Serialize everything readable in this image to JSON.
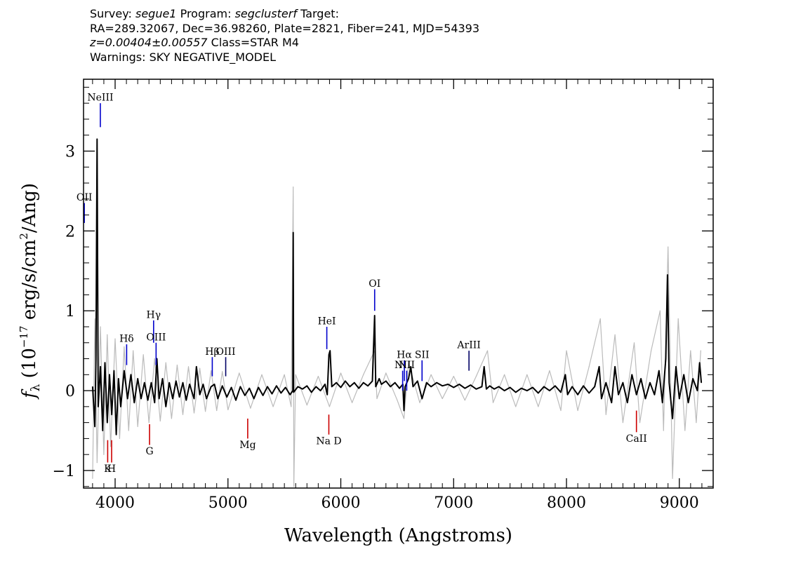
{
  "header": {
    "survey_label": "Survey:",
    "survey": "segue1",
    "program_label": "Program:",
    "program": "segclusterf",
    "target_label": "Target:",
    "line2": "RA=289.32067, Dec=36.98260, Plate=2821, Fiber=241, MJD=54393",
    "z_text": "z=0.00404±0.00557",
    "class_text": "Class=STAR M4",
    "warnings": "Warnings: SKY NEGATIVE_MODEL"
  },
  "chart_data": {
    "type": "line",
    "title": "",
    "xlabel": "Wavelength (Angstroms)",
    "ylabel_parts": {
      "f": "f",
      "sub": "λ",
      "rest1": " (10",
      "exp": "−17",
      "rest2": " erg/s/cm",
      "exp2": "2",
      "rest3": "/Ang)"
    },
    "xlim": [
      3720,
      9300
    ],
    "ylim": [
      -1.22,
      3.9
    ],
    "x_ticks": [
      4000,
      5000,
      6000,
      7000,
      8000,
      9000
    ],
    "x_tick_labels": [
      "4000",
      "5000",
      "6000",
      "7000",
      "8000",
      "9000"
    ],
    "y_ticks": [
      -1,
      0,
      1,
      2,
      3
    ],
    "y_tick_labels": [
      "−1",
      "0",
      "1",
      "2",
      "3"
    ],
    "series": [
      {
        "role": "flux",
        "color": "#000000",
        "points": [
          [
            3800,
            0.05
          ],
          [
            3820,
            -0.45
          ],
          [
            3830,
            0.4
          ],
          [
            3840,
            3.15
          ],
          [
            3850,
            -0.2
          ],
          [
            3870,
            0.3
          ],
          [
            3890,
            -0.5
          ],
          [
            3910,
            0.35
          ],
          [
            3930,
            -0.4
          ],
          [
            3950,
            0.2
          ],
          [
            3970,
            -0.3
          ],
          [
            3990,
            0.25
          ],
          [
            4010,
            -0.55
          ],
          [
            4030,
            0.15
          ],
          [
            4050,
            -0.2
          ],
          [
            4080,
            0.25
          ],
          [
            4110,
            -0.1
          ],
          [
            4140,
            0.2
          ],
          [
            4170,
            -0.15
          ],
          [
            4200,
            0.15
          ],
          [
            4230,
            -0.1
          ],
          [
            4260,
            0.1
          ],
          [
            4290,
            -0.12
          ],
          [
            4320,
            0.1
          ],
          [
            4350,
            -0.15
          ],
          [
            4370,
            0.4
          ],
          [
            4390,
            -0.1
          ],
          [
            4420,
            0.15
          ],
          [
            4450,
            -0.2
          ],
          [
            4480,
            0.1
          ],
          [
            4510,
            -0.1
          ],
          [
            4540,
            0.12
          ],
          [
            4570,
            -0.08
          ],
          [
            4600,
            0.1
          ],
          [
            4630,
            -0.12
          ],
          [
            4660,
            0.08
          ],
          [
            4700,
            -0.1
          ],
          [
            4720,
            0.3
          ],
          [
            4750,
            -0.05
          ],
          [
            4780,
            0.08
          ],
          [
            4810,
            -0.1
          ],
          [
            4850,
            0.05
          ],
          [
            4880,
            0.08
          ],
          [
            4910,
            -0.1
          ],
          [
            4950,
            0.06
          ],
          [
            4990,
            -0.08
          ],
          [
            5030,
            0.04
          ],
          [
            5070,
            -0.12
          ],
          [
            5110,
            0.05
          ],
          [
            5150,
            -0.06
          ],
          [
            5190,
            0.03
          ],
          [
            5230,
            -0.1
          ],
          [
            5270,
            0.04
          ],
          [
            5310,
            -0.06
          ],
          [
            5350,
            0.05
          ],
          [
            5390,
            -0.04
          ],
          [
            5430,
            0.06
          ],
          [
            5470,
            -0.03
          ],
          [
            5510,
            0.04
          ],
          [
            5550,
            -0.05
          ],
          [
            5575,
            0.0
          ],
          [
            5578,
            1.98
          ],
          [
            5582,
            -0.02
          ],
          [
            5620,
            0.05
          ],
          [
            5660,
            0.02
          ],
          [
            5700,
            0.06
          ],
          [
            5740,
            -0.02
          ],
          [
            5780,
            0.05
          ],
          [
            5820,
            0.0
          ],
          [
            5860,
            0.08
          ],
          [
            5880,
            -0.05
          ],
          [
            5895,
            0.45
          ],
          [
            5905,
            0.5
          ],
          [
            5920,
            0.05
          ],
          [
            5960,
            0.1
          ],
          [
            6000,
            0.04
          ],
          [
            6040,
            0.12
          ],
          [
            6080,
            0.05
          ],
          [
            6120,
            0.1
          ],
          [
            6160,
            0.03
          ],
          [
            6200,
            0.1
          ],
          [
            6240,
            0.06
          ],
          [
            6280,
            0.12
          ],
          [
            6300,
            0.94
          ],
          [
            6310,
            0.05
          ],
          [
            6340,
            0.15
          ],
          [
            6360,
            0.08
          ],
          [
            6400,
            0.12
          ],
          [
            6440,
            0.05
          ],
          [
            6480,
            0.1
          ],
          [
            6520,
            0.03
          ],
          [
            6550,
            0.08
          ],
          [
            6560,
            -0.25
          ],
          [
            6570,
            0.05
          ],
          [
            6600,
            0.15
          ],
          [
            6620,
            0.3
          ],
          [
            6640,
            0.05
          ],
          [
            6680,
            0.12
          ],
          [
            6720,
            -0.1
          ],
          [
            6760,
            0.1
          ],
          [
            6800,
            0.05
          ],
          [
            6850,
            0.1
          ],
          [
            6900,
            0.06
          ],
          [
            6950,
            0.08
          ],
          [
            7000,
            0.04
          ],
          [
            7050,
            0.08
          ],
          [
            7100,
            0.03
          ],
          [
            7150,
            0.07
          ],
          [
            7200,
            0.02
          ],
          [
            7250,
            0.05
          ],
          [
            7270,
            0.3
          ],
          [
            7290,
            0.02
          ],
          [
            7320,
            0.06
          ],
          [
            7360,
            0.02
          ],
          [
            7400,
            0.05
          ],
          [
            7450,
            0.0
          ],
          [
            7500,
            0.04
          ],
          [
            7550,
            -0.02
          ],
          [
            7600,
            0.03
          ],
          [
            7650,
            0.0
          ],
          [
            7700,
            0.04
          ],
          [
            7750,
            -0.03
          ],
          [
            7800,
            0.05
          ],
          [
            7850,
            0.0
          ],
          [
            7900,
            0.06
          ],
          [
            7950,
            -0.02
          ],
          [
            7990,
            0.2
          ],
          [
            8010,
            -0.05
          ],
          [
            8050,
            0.05
          ],
          [
            8100,
            -0.05
          ],
          [
            8150,
            0.06
          ],
          [
            8200,
            -0.03
          ],
          [
            8250,
            0.05
          ],
          [
            8290,
            0.3
          ],
          [
            8310,
            -0.1
          ],
          [
            8350,
            0.1
          ],
          [
            8400,
            -0.15
          ],
          [
            8430,
            0.3
          ],
          [
            8460,
            -0.05
          ],
          [
            8500,
            0.1
          ],
          [
            8540,
            -0.15
          ],
          [
            8580,
            0.2
          ],
          [
            8620,
            -0.05
          ],
          [
            8660,
            0.15
          ],
          [
            8700,
            -0.1
          ],
          [
            8740,
            0.1
          ],
          [
            8780,
            -0.05
          ],
          [
            8820,
            0.25
          ],
          [
            8850,
            -0.15
          ],
          [
            8880,
            0.4
          ],
          [
            8895,
            1.45
          ],
          [
            8910,
            0.1
          ],
          [
            8940,
            -0.35
          ],
          [
            8970,
            0.3
          ],
          [
            9000,
            -0.1
          ],
          [
            9040,
            0.2
          ],
          [
            9080,
            -0.15
          ],
          [
            9120,
            0.15
          ],
          [
            9160,
            0.0
          ],
          [
            9180,
            0.35
          ],
          [
            9195,
            0.1
          ]
        ]
      },
      {
        "role": "error",
        "color": "#bbbbbb",
        "points": [
          [
            3800,
            -1.1
          ],
          [
            3820,
            0.9
          ],
          [
            3840,
            -0.9
          ],
          [
            3870,
            0.8
          ],
          [
            3900,
            -0.8
          ],
          [
            3930,
            0.7
          ],
          [
            3960,
            -0.7
          ],
          [
            4000,
            0.65
          ],
          [
            4040,
            -0.6
          ],
          [
            4080,
            0.55
          ],
          [
            4120,
            -0.5
          ],
          [
            4160,
            0.5
          ],
          [
            4200,
            -0.45
          ],
          [
            4250,
            0.45
          ],
          [
            4300,
            -0.4
          ],
          [
            4350,
            0.4
          ],
          [
            4400,
            -0.38
          ],
          [
            4450,
            0.35
          ],
          [
            4500,
            -0.35
          ],
          [
            4550,
            0.32
          ],
          [
            4600,
            -0.3
          ],
          [
            4650,
            0.3
          ],
          [
            4700,
            -0.28
          ],
          [
            4750,
            0.28
          ],
          [
            4800,
            -0.26
          ],
          [
            4850,
            0.25
          ],
          [
            4900,
            -0.25
          ],
          [
            4950,
            0.24
          ],
          [
            5000,
            -0.24
          ],
          [
            5100,
            0.22
          ],
          [
            5200,
            -0.22
          ],
          [
            5300,
            0.2
          ],
          [
            5400,
            -0.2
          ],
          [
            5500,
            0.2
          ],
          [
            5560,
            -0.2
          ],
          [
            5578,
            2.55
          ],
          [
            5584,
            -1.2
          ],
          [
            5600,
            0.2
          ],
          [
            5700,
            -0.18
          ],
          [
            5800,
            0.18
          ],
          [
            5900,
            -0.2
          ],
          [
            6000,
            0.22
          ],
          [
            6100,
            -0.15
          ],
          [
            6200,
            0.2
          ],
          [
            6300,
            0.5
          ],
          [
            6320,
            -0.1
          ],
          [
            6400,
            0.22
          ],
          [
            6500,
            -0.12
          ],
          [
            6560,
            -0.35
          ],
          [
            6600,
            0.35
          ],
          [
            6700,
            -0.15
          ],
          [
            6800,
            0.2
          ],
          [
            6900,
            -0.1
          ],
          [
            7000,
            0.18
          ],
          [
            7100,
            -0.12
          ],
          [
            7200,
            0.18
          ],
          [
            7300,
            0.5
          ],
          [
            7350,
            -0.15
          ],
          [
            7450,
            0.2
          ],
          [
            7550,
            -0.2
          ],
          [
            7650,
            0.2
          ],
          [
            7750,
            -0.2
          ],
          [
            7850,
            0.25
          ],
          [
            7950,
            -0.25
          ],
          [
            8000,
            0.5
          ],
          [
            8100,
            -0.25
          ],
          [
            8200,
            0.3
          ],
          [
            8300,
            0.9
          ],
          [
            8350,
            -0.3
          ],
          [
            8430,
            0.7
          ],
          [
            8500,
            -0.4
          ],
          [
            8600,
            0.6
          ],
          [
            8650,
            -0.4
          ],
          [
            8750,
            0.5
          ],
          [
            8830,
            1.0
          ],
          [
            8860,
            -0.5
          ],
          [
            8900,
            1.8
          ],
          [
            8940,
            -1.1
          ],
          [
            8990,
            0.9
          ],
          [
            9050,
            -0.5
          ],
          [
            9100,
            0.5
          ],
          [
            9150,
            -0.4
          ],
          [
            9190,
            0.5
          ]
        ]
      }
    ],
    "emission_lines": [
      {
        "label": "OII",
        "x": 3727,
        "y_bottom": 2.1,
        "y_top": 2.35,
        "label_y": 2.38,
        "color": "#0000cc"
      },
      {
        "label": "NeIII",
        "x": 3869,
        "y_bottom": 3.3,
        "y_top": 3.6,
        "label_y": 3.63,
        "color": "#0000cc"
      },
      {
        "label": "Hδ",
        "x": 4102,
        "y_bottom": 0.32,
        "y_top": 0.58,
        "label_y": 0.61,
        "color": "#0000cc"
      },
      {
        "label": "Hγ",
        "x": 4341,
        "y_bottom": 0.6,
        "y_top": 0.88,
        "label_y": 0.91,
        "color": "#0000cc"
      },
      {
        "label": "OIII",
        "x": 4363,
        "y_bottom": 0.32,
        "y_top": 0.6,
        "label_y": 0.63,
        "color": "#0000cc"
      },
      {
        "label": "Hβ",
        "x": 4861,
        "y_bottom": 0.18,
        "y_top": 0.42,
        "label_y": 0.45,
        "color": "#0000cc"
      },
      {
        "label": "OIII",
        "x": 4980,
        "y_bottom": 0.18,
        "y_top": 0.42,
        "label_y": 0.45,
        "color": "#000066"
      },
      {
        "label": "HeI",
        "x": 5876,
        "y_bottom": 0.52,
        "y_top": 0.8,
        "label_y": 0.83,
        "color": "#0000cc"
      },
      {
        "label": "OI",
        "x": 6300,
        "y_bottom": 1.0,
        "y_top": 1.27,
        "label_y": 1.3,
        "color": "#0000cc"
      },
      {
        "label": "NII",
        "x": 6548,
        "y_bottom": 0.0,
        "y_top": 0.25,
        "label_y": 0.28,
        "color": "#0000cc"
      },
      {
        "label": "Hα",
        "x": 6563,
        "y_bottom": 0.12,
        "y_top": 0.38,
        "label_y": 0.41,
        "color": "#0000cc"
      },
      {
        "label": "NII",
        "x": 6584,
        "y_bottom": 0.0,
        "y_top": 0.25,
        "label_y": 0.28,
        "color": "#0000cc"
      },
      {
        "label": "SII",
        "x": 6720,
        "y_bottom": 0.12,
        "y_top": 0.38,
        "label_y": 0.41,
        "color": "#0000cc"
      },
      {
        "label": "ArIII",
        "x": 7136,
        "y_bottom": 0.25,
        "y_top": 0.5,
        "label_y": 0.53,
        "color": "#000066"
      }
    ],
    "absorption_lines": [
      {
        "label": "K",
        "x": 3934,
        "y_top": -0.62,
        "y_bottom": -0.9,
        "label_y": -1.02,
        "color": "#cc0000"
      },
      {
        "label": "H",
        "x": 3969,
        "y_top": -0.62,
        "y_bottom": -0.9,
        "label_y": -1.02,
        "color": "#cc0000"
      },
      {
        "label": "G",
        "x": 4305,
        "y_top": -0.42,
        "y_bottom": -0.68,
        "label_y": -0.8,
        "color": "#cc0000"
      },
      {
        "label": "Mg",
        "x": 5175,
        "y_top": -0.35,
        "y_bottom": -0.6,
        "label_y": -0.72,
        "color": "#cc0000"
      },
      {
        "label": "Na D",
        "x": 5894,
        "y_top": -0.3,
        "y_bottom": -0.55,
        "label_y": -0.67,
        "color": "#cc0000"
      },
      {
        "label": "CaII",
        "x": 8620,
        "y_top": -0.25,
        "y_bottom": -0.52,
        "label_y": -0.64,
        "color": "#cc0000"
      }
    ]
  }
}
